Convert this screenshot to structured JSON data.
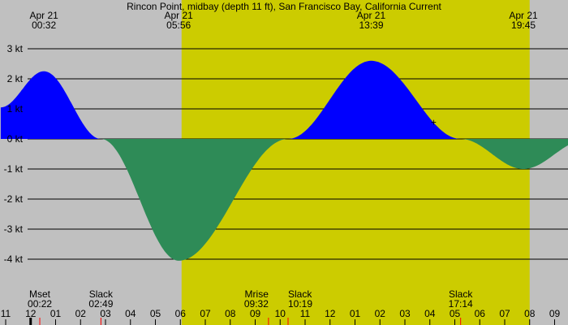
{
  "chart_data": {
    "type": "area",
    "title": "Rincon Point, midbay (depth 11 ft), San Francisco Bay, California Current",
    "ylabel": "kt",
    "ylim": [
      -4.6,
      3.3
    ],
    "xlim_hours": [
      23.0,
      46.0
    ],
    "y_ticks": [
      {
        "value": 3,
        "label": "3 kt"
      },
      {
        "value": 2,
        "label": "2 kt"
      },
      {
        "value": 1,
        "label": "1 kt"
      },
      {
        "value": 0,
        "label": "0 kt"
      },
      {
        "value": -1,
        "label": "-1 kt"
      },
      {
        "value": -2,
        "label": "-2 kt"
      },
      {
        "value": -3,
        "label": "-3 kt"
      },
      {
        "value": -4,
        "label": "-4 kt"
      }
    ],
    "x_ticks": [
      {
        "hour": 23,
        "label": "11"
      },
      {
        "hour": 24,
        "label": "12"
      },
      {
        "hour": 25,
        "label": "01"
      },
      {
        "hour": 26,
        "label": "02"
      },
      {
        "hour": 27,
        "label": "03"
      },
      {
        "hour": 28,
        "label": "04"
      },
      {
        "hour": 29,
        "label": "05"
      },
      {
        "hour": 30,
        "label": "06"
      },
      {
        "hour": 31,
        "label": "07"
      },
      {
        "hour": 32,
        "label": "08"
      },
      {
        "hour": 33,
        "label": "09"
      },
      {
        "hour": 34,
        "label": "10"
      },
      {
        "hour": 35,
        "label": "11"
      },
      {
        "hour": 36,
        "label": "12"
      },
      {
        "hour": 37,
        "label": "01"
      },
      {
        "hour": 38,
        "label": "02"
      },
      {
        "hour": 39,
        "label": "03"
      },
      {
        "hour": 40,
        "label": "04"
      },
      {
        "hour": 41,
        "label": "05"
      },
      {
        "hour": 42,
        "label": "06"
      },
      {
        "hour": 43,
        "label": "07"
      },
      {
        "hour": 44,
        "label": "08"
      },
      {
        "hour": 45,
        "label": "09"
      }
    ],
    "top_events": [
      {
        "hour": 24.533,
        "date": "Apr 21",
        "time": "00:32"
      },
      {
        "hour": 29.933,
        "date": "Apr 21",
        "time": "05:56"
      },
      {
        "hour": 37.65,
        "date": "Apr 21",
        "time": "13:39"
      },
      {
        "hour": 43.75,
        "date": "Apr 21",
        "time": "19:45"
      }
    ],
    "bottom_events": [
      {
        "hour": 24.367,
        "label": "Mset",
        "time": "00:22",
        "anchor": "middle"
      },
      {
        "hour": 26.817,
        "label": "Slack",
        "time": "02:49",
        "anchor": "middle"
      },
      {
        "hour": 33.533,
        "label": "Mrise",
        "time": "09:32",
        "anchor": "end"
      },
      {
        "hour": 34.317,
        "label": "Slack",
        "time": "10:19",
        "anchor": "start"
      },
      {
        "hour": 41.233,
        "label": "Slack",
        "time": "17:14",
        "anchor": "middle"
      }
    ],
    "daylight_hours": [
      30.05,
      44.0
    ],
    "current_points": [
      {
        "hour": 22.8,
        "kt": 1.05
      },
      {
        "hour": 24.533,
        "kt": 2.25
      },
      {
        "hour": 26.817,
        "kt": 0
      },
      {
        "hour": 29.933,
        "kt": -4.05
      },
      {
        "hour": 34.317,
        "kt": 0
      },
      {
        "hour": 37.65,
        "kt": 2.6
      },
      {
        "hour": 41.233,
        "kt": 0
      },
      {
        "hour": 43.75,
        "kt": -1.0
      },
      {
        "hour": 46.2,
        "kt": -0.05
      }
    ],
    "series": [
      {
        "fill": "#0000ff"
      },
      {
        "fill": "#2e8b57"
      }
    ],
    "colors": {
      "night": "#c0c0c0",
      "day": "#cccc00",
      "flood": "#0000ff",
      "ebb": "#2e8b57",
      "tick": "#ff0000"
    },
    "marker": {
      "hour": 40.15,
      "kt": 0.55,
      "symbol": "+"
    },
    "grid": true
  }
}
